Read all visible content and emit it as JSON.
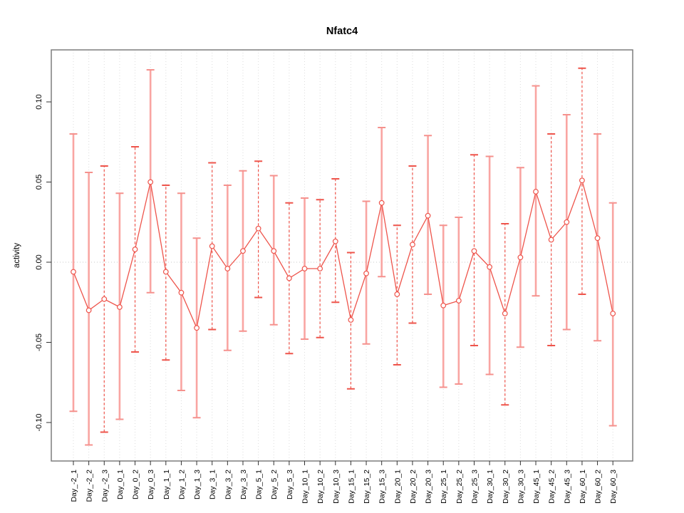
{
  "chart_data": {
    "type": "line",
    "title": "Nfatc4",
    "xlabel": "",
    "ylabel": "activity",
    "legend": "none",
    "grid": "vertical dotted gridline at every category; dotted horizontal line at y=0 only",
    "ylim": [
      -0.124,
      0.132
    ],
    "yticks": [
      {
        "value": -0.1,
        "label": "-0.10"
      },
      {
        "value": -0.05,
        "label": "-0.05"
      },
      {
        "value": 0.0,
        "label": "0.00"
      },
      {
        "value": 0.05,
        "label": "0.05"
      },
      {
        "value": 0.1,
        "label": "0.10"
      }
    ],
    "categories": [
      "Day_-2_1",
      "Day_-2_2",
      "Day_-2_3",
      "Day_0_1",
      "Day_0_2",
      "Day_0_3",
      "Day_1_1",
      "Day_1_2",
      "Day_1_3",
      "Day_3_1",
      "Day_3_2",
      "Day_3_3",
      "Day_5_1",
      "Day_5_2",
      "Day_5_3",
      "Day_10_1",
      "Day_10_2",
      "Day_10_3",
      "Day_15_1",
      "Day_15_2",
      "Day_15_3",
      "Day_20_1",
      "Day_20_2",
      "Day_20_3",
      "Day_25_1",
      "Day_25_2",
      "Day_25_3",
      "Day_30_1",
      "Day_30_2",
      "Day_30_3",
      "Day_45_1",
      "Day_45_2",
      "Day_45_3",
      "Day_60_1",
      "Day_60_2",
      "Day_60_3"
    ],
    "series": [
      {
        "name": "activity",
        "marker": "open-circle",
        "values": [
          -0.006,
          -0.03,
          -0.023,
          -0.028,
          0.008,
          0.05,
          -0.006,
          -0.019,
          -0.041,
          0.01,
          -0.004,
          0.007,
          0.021,
          0.007,
          -0.01,
          -0.004,
          -0.004,
          0.013,
          -0.036,
          -0.007,
          0.037,
          -0.02,
          0.011,
          0.029,
          -0.027,
          -0.024,
          0.007,
          -0.003,
          -0.032,
          0.003,
          0.044,
          0.014,
          0.025,
          0.051,
          0.015,
          -0.032
        ]
      }
    ],
    "error_low": [
      -0.093,
      -0.114,
      -0.106,
      -0.098,
      -0.056,
      -0.019,
      -0.061,
      -0.08,
      -0.097,
      -0.042,
      -0.055,
      -0.043,
      -0.022,
      -0.039,
      -0.057,
      -0.048,
      -0.047,
      -0.025,
      -0.079,
      -0.051,
      -0.009,
      -0.064,
      -0.038,
      -0.02,
      -0.078,
      -0.076,
      -0.052,
      -0.07,
      -0.089,
      -0.053,
      -0.021,
      -0.052,
      -0.042,
      -0.02,
      -0.049,
      -0.102
    ],
    "error_high": [
      0.08,
      0.056,
      0.06,
      0.043,
      0.072,
      0.12,
      0.048,
      0.043,
      0.015,
      0.062,
      0.048,
      0.057,
      0.063,
      0.054,
      0.037,
      0.04,
      0.039,
      0.052,
      0.006,
      0.038,
      0.084,
      0.023,
      0.06,
      0.079,
      0.023,
      0.028,
      0.067,
      0.066,
      0.024,
      0.059,
      0.11,
      0.08,
      0.092,
      0.121,
      0.08,
      0.037
    ],
    "bar_styles": [
      "solid",
      "solid",
      "dashed",
      "solid",
      "dashed",
      "solid",
      "dashed",
      "solid",
      "solid",
      "dashed",
      "solid",
      "solid",
      "dashed",
      "solid",
      "dashed",
      "solid",
      "dashed",
      "dashed",
      "dashed",
      "solid",
      "solid",
      "dashed",
      "dashed",
      "solid",
      "solid",
      "solid",
      "dashed",
      "solid",
      "dashed",
      "solid",
      "solid",
      "dashed",
      "solid",
      "dashed",
      "solid",
      "solid"
    ]
  },
  "colors": {
    "series_line": "#ee544b",
    "marker_stroke": "#ee544b",
    "marker_fill": "#ffffff",
    "error_bar_solid": "#f9a5a2",
    "error_bar_dashed": "#ee544b",
    "error_cap_solid": "#f5918d",
    "error_cap_dashed": "#ee544b",
    "gridline": "#dcdcdc",
    "zero_line": "#c9c9c9",
    "frame": "#7d7d7d",
    "tick": "#333333",
    "text": "#000000",
    "background": "#ffffff"
  }
}
